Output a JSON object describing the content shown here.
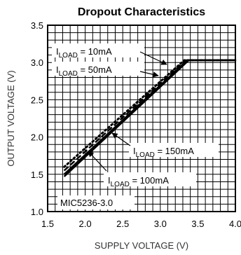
{
  "chart_data": {
    "type": "line",
    "title": "Dropout Characteristics",
    "xlabel": "SUPPLY VOLTAGE (V)",
    "ylabel": "OUTPUT VOLTAGE (V)",
    "xlim": [
      1.5,
      4.0
    ],
    "ylim": [
      1.0,
      3.5
    ],
    "xticks": [
      1.5,
      2.0,
      2.5,
      3.0,
      3.5,
      4.0
    ],
    "xtick_labels": [
      "1.5",
      "2.0",
      "2.5",
      "3.0",
      "3.5",
      "4.0"
    ],
    "yticks": [
      1.0,
      1.5,
      2.0,
      2.5,
      3.0,
      3.5
    ],
    "ytick_labels": [
      "1.0",
      "1.5",
      "2.0",
      "2.5",
      "3.0",
      "3.5"
    ],
    "grid": true,
    "series": [
      {
        "name": "I_LOAD = 10mA",
        "style": "dotted",
        "x": [
          1.72,
          3.32,
          4.0
        ],
        "y": [
          1.6,
          3.03,
          3.03
        ]
      },
      {
        "name": "I_LOAD = 50mA",
        "style": "dashed",
        "x": [
          1.72,
          3.34,
          4.0
        ],
        "y": [
          1.55,
          3.03,
          3.03
        ]
      },
      {
        "name": "I_LOAD = 100mA",
        "style": "solid",
        "x": [
          1.72,
          3.36,
          4.0
        ],
        "y": [
          1.5,
          3.03,
          3.03
        ]
      },
      {
        "name": "I_LOAD = 150mA",
        "style": "solid",
        "x": [
          1.72,
          3.38,
          4.0
        ],
        "y": [
          1.47,
          3.03,
          3.03
        ]
      }
    ],
    "annotations": [
      {
        "main": "I",
        "sub": "LOAD",
        "rest": " = 10mA"
      },
      {
        "main": "I",
        "sub": "LOAD",
        "rest": " = 50mA"
      },
      {
        "main": "I",
        "sub": "LOAD",
        "rest": " = 150mA"
      },
      {
        "main": "I",
        "sub": "LOAD",
        "rest": " = 100mA"
      }
    ],
    "part_label": "MIC5236-3.0"
  }
}
